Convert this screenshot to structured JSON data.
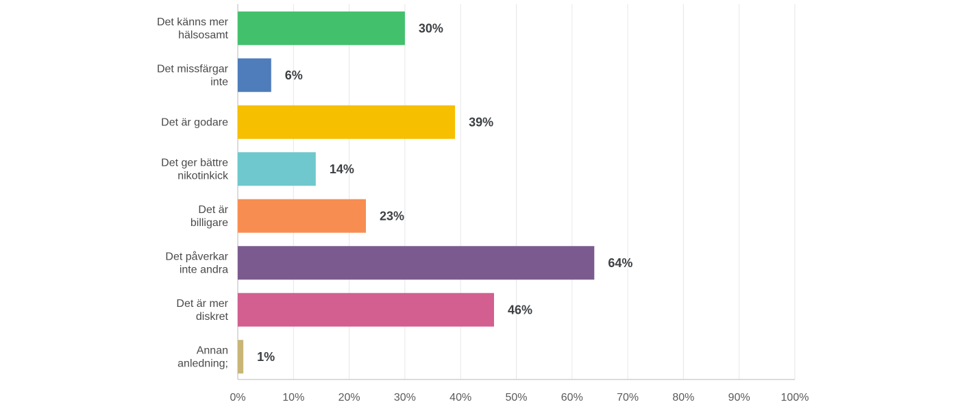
{
  "chart_data": {
    "type": "bar",
    "orientation": "horizontal",
    "categories": [
      [
        "Det känns mer",
        "hälsosamt"
      ],
      [
        "Det missfärgar",
        "inte"
      ],
      [
        "Det är godare"
      ],
      [
        "Det ger bättre",
        "nikotinkick"
      ],
      [
        "Det är",
        "billigare"
      ],
      [
        "Det påverkar",
        "inte andra"
      ],
      [
        "Det är mer",
        "diskret"
      ],
      [
        "Annan",
        "anledning;"
      ]
    ],
    "values": [
      30,
      6,
      39,
      14,
      23,
      64,
      46,
      1
    ],
    "value_labels": [
      "30%",
      "6%",
      "39%",
      "14%",
      "23%",
      "64%",
      "46%",
      "1%"
    ],
    "colors": [
      "#43c06c",
      "#4f7cba",
      "#f6bf00",
      "#6fc8cd",
      "#f88d52",
      "#7b5b8f",
      "#d25f90",
      "#c8b676"
    ],
    "xlim": [
      0,
      100
    ],
    "x_ticks": [
      "0%",
      "10%",
      "20%",
      "30%",
      "40%",
      "50%",
      "60%",
      "70%",
      "80%",
      "90%",
      "100%"
    ],
    "grid": true,
    "title": "",
    "xlabel": "",
    "ylabel": ""
  }
}
